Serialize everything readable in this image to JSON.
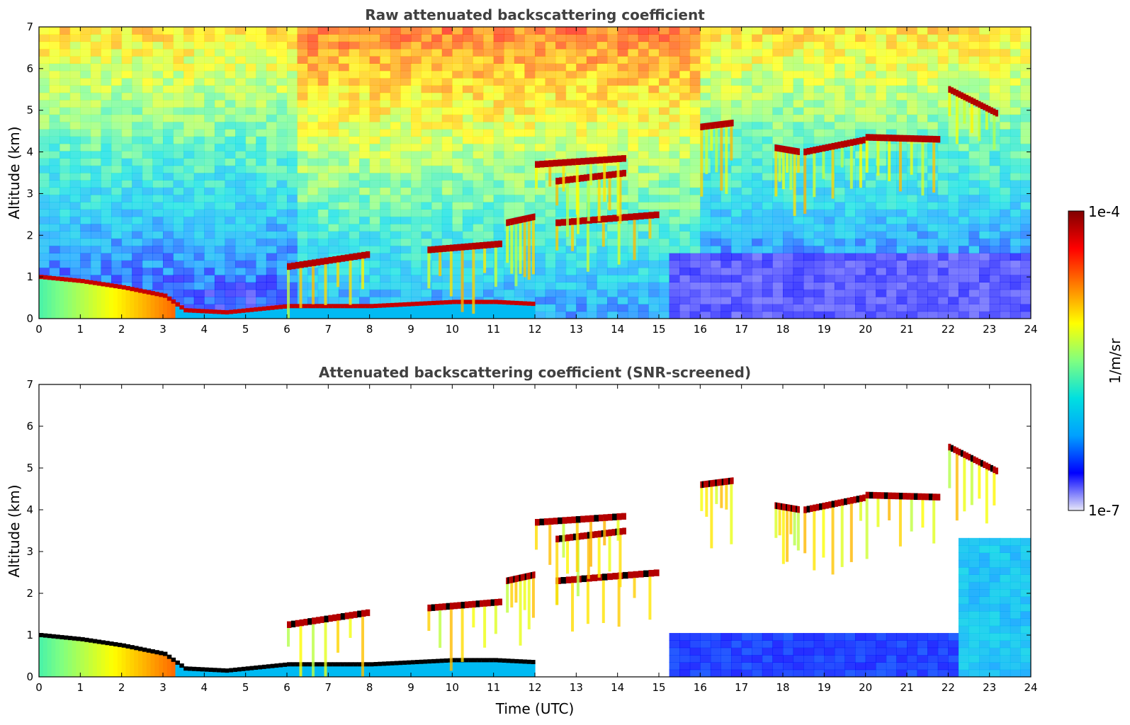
{
  "chart_data": [
    {
      "type": "heatmap",
      "title": "Raw attenuated backscattering coefficient",
      "xlabel": "",
      "ylabel": "Altitude (km)",
      "xlim": [
        0,
        24
      ],
      "ylim": [
        0,
        7
      ],
      "xticks": [
        "0",
        "1",
        "2",
        "3",
        "4",
        "5",
        "6",
        "7",
        "8",
        "9",
        "10",
        "11",
        "12",
        "13",
        "14",
        "15",
        "16",
        "17",
        "18",
        "19",
        "20",
        "21",
        "22",
        "23",
        "24"
      ],
      "yticks": [
        "0",
        "1",
        "2",
        "3",
        "4",
        "5",
        "6",
        "7"
      ],
      "screened": false,
      "features": {
        "boundary_layer_top_km": [
          [
            0,
            1.0
          ],
          [
            1,
            0.9
          ],
          [
            2,
            0.75
          ],
          [
            3,
            0.55
          ],
          [
            3.5,
            0.2
          ],
          [
            4.5,
            0.15
          ],
          [
            5,
            0.2
          ],
          [
            6,
            0.3
          ],
          [
            8,
            0.3
          ],
          [
            10,
            0.4
          ],
          [
            11,
            0.4
          ],
          [
            12,
            0.35
          ]
        ],
        "cloud_layers": [
          {
            "t0": 6.0,
            "t1": 8.0,
            "alt0": 1.25,
            "alt1": 1.55
          },
          {
            "t0": 9.4,
            "t1": 11.2,
            "alt0": 1.65,
            "alt1": 1.8
          },
          {
            "t0": 11.3,
            "t1": 12.0,
            "alt0": 2.3,
            "alt1": 2.45
          },
          {
            "t0": 12.5,
            "t1": 15.0,
            "alt0": 2.3,
            "alt1": 2.5
          },
          {
            "t0": 12.5,
            "t1": 14.2,
            "alt0": 3.3,
            "alt1": 3.5
          },
          {
            "t0": 12.0,
            "t1": 14.2,
            "alt0": 3.7,
            "alt1": 3.85
          },
          {
            "t0": 16.0,
            "t1": 16.8,
            "alt0": 4.6,
            "alt1": 4.7
          },
          {
            "t0": 17.8,
            "t1": 18.4,
            "alt0": 4.1,
            "alt1": 4.0
          },
          {
            "t0": 18.5,
            "t1": 20.0,
            "alt0": 4.0,
            "alt1": 4.3
          },
          {
            "t0": 20.0,
            "t1": 21.8,
            "alt0": 4.35,
            "alt1": 4.3
          },
          {
            "t0": 22.0,
            "t1": 23.2,
            "alt0": 5.5,
            "alt1": 4.9
          }
        ]
      }
    },
    {
      "type": "heatmap",
      "title": "Attenuated backscattering coefficient (SNR-screened)",
      "xlabel": "Time (UTC)",
      "ylabel": "Altitude (km)",
      "xlim": [
        0,
        24
      ],
      "ylim": [
        0,
        7
      ],
      "xticks": [
        "0",
        "1",
        "2",
        "3",
        "4",
        "5",
        "6",
        "7",
        "8",
        "9",
        "10",
        "11",
        "12",
        "13",
        "14",
        "15",
        "16",
        "17",
        "18",
        "19",
        "20",
        "21",
        "22",
        "23",
        "24"
      ],
      "yticks": [
        "0",
        "1",
        "2",
        "3",
        "4",
        "5",
        "6",
        "7"
      ],
      "screened": true
    }
  ],
  "colorbar": {
    "label": "1/m/sr",
    "max_label": "1e-4",
    "min_label": "1e-7",
    "scale": "log",
    "range": [
      1e-07,
      0.0001
    ],
    "colormap": [
      "#e8e8f8",
      "#0000ff",
      "#00a0ff",
      "#00e0e0",
      "#80ff80",
      "#ffff00",
      "#ff8000",
      "#ff0000",
      "#800000"
    ]
  }
}
